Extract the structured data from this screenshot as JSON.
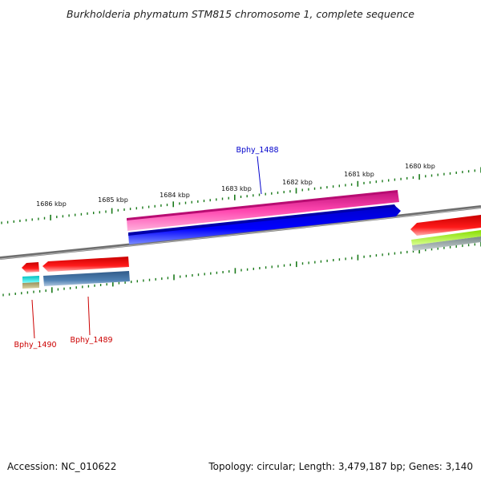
{
  "title": "Burkholderia phymatum STM815 chromosome 1, complete sequence",
  "footer": {
    "accession": "Accession: NC_010622",
    "summary": "Topology: circular; Length: 3,479,187 bp; Genes: 3,140"
  },
  "scale_labels": [
    "1686 kbp",
    "1685 kbp",
    "1684 kbp",
    "1683 kbp",
    "1682 kbp",
    "1681 kbp",
    "1680 kbp"
  ],
  "gene_labels": {
    "bphy_1488": "Bphy_1488",
    "bphy_1489": "Bphy_1489",
    "bphy_1490": "Bphy_1490"
  },
  "colors": {
    "backbone": "#7a7a7a",
    "tick": "#1a7a1a",
    "label_plus": "#0000cc",
    "label_minus": "#cc0000",
    "pink": "#e8168c",
    "blue": "#0000ee",
    "red": "#ee0000",
    "steel": "#4a7aaa",
    "cyan": "#00dddd",
    "olive": "#a8a060",
    "lime": "#aaff22",
    "gray": "#8a9a9a"
  }
}
